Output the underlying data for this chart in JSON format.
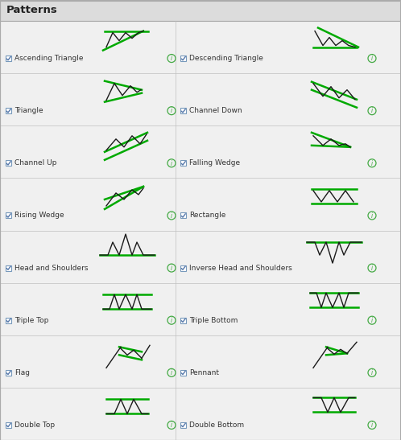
{
  "title": "Patterns",
  "bg_color": "#dcdcdc",
  "content_bg": "#f0f0f0",
  "green": "#00aa00",
  "black": "#1a1a1a",
  "label_color": "#333333",
  "info_color": "#44aa44",
  "patterns": [
    {
      "name": "Ascending Triangle",
      "col": 0,
      "row": 0
    },
    {
      "name": "Descending Triangle",
      "col": 1,
      "row": 0
    },
    {
      "name": "Triangle",
      "col": 0,
      "row": 1
    },
    {
      "name": "Channel Down",
      "col": 1,
      "row": 1
    },
    {
      "name": "Channel Up",
      "col": 0,
      "row": 2
    },
    {
      "name": "Falling Wedge",
      "col": 1,
      "row": 2
    },
    {
      "name": "Rising Wedge",
      "col": 0,
      "row": 3
    },
    {
      "name": "Rectangle",
      "col": 1,
      "row": 3
    },
    {
      "name": "Head and Shoulders",
      "col": 0,
      "row": 4
    },
    {
      "name": "Inverse Head and Shoulders",
      "col": 1,
      "row": 4
    },
    {
      "name": "Triple Top",
      "col": 0,
      "row": 5
    },
    {
      "name": "Triple Bottom",
      "col": 1,
      "row": 5
    },
    {
      "name": "Flag",
      "col": 0,
      "row": 6
    },
    {
      "name": "Pennant",
      "col": 1,
      "row": 6
    },
    {
      "name": "Double Top",
      "col": 0,
      "row": 7
    },
    {
      "name": "Double Bottom",
      "col": 1,
      "row": 7
    }
  ],
  "figsize": [
    4.98,
    5.47
  ],
  "dpi": 100
}
